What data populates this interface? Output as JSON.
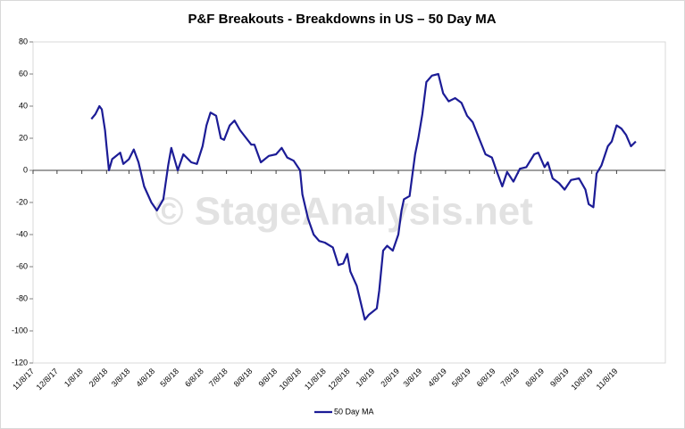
{
  "chart_data": {
    "type": "line",
    "title": "P&F Breakouts - Breakdowns in US – 50 Day MA",
    "watermark": "© StageAnalysis.net",
    "x": [
      "2018-01-20",
      "2018-01-25",
      "2018-01-30",
      "2018-02-02",
      "2018-02-06",
      "2018-02-08",
      "2018-02-11",
      "2018-02-15",
      "2018-02-25",
      "2018-03-01",
      "2018-03-08",
      "2018-03-14",
      "2018-03-20",
      "2018-03-27",
      "2018-04-05",
      "2018-04-12",
      "2018-04-20",
      "2018-04-26",
      "2018-04-30",
      "2018-05-08",
      "2018-05-15",
      "2018-05-25",
      "2018-06-01",
      "2018-06-08",
      "2018-06-13",
      "2018-06-18",
      "2018-06-25",
      "2018-07-01",
      "2018-07-05",
      "2018-07-12",
      "2018-07-18",
      "2018-07-25",
      "2018-08-08",
      "2018-08-12",
      "2018-08-20",
      "2018-08-30",
      "2018-09-08",
      "2018-09-15",
      "2018-09-22",
      "2018-09-30",
      "2018-10-08",
      "2018-10-11",
      "2018-10-18",
      "2018-10-25",
      "2018-11-01",
      "2018-11-08",
      "2018-11-18",
      "2018-11-25",
      "2018-12-01",
      "2018-12-06",
      "2018-12-10",
      "2018-12-18",
      "2018-12-28",
      "2019-01-02",
      "2019-01-12",
      "2019-01-15",
      "2019-01-20",
      "2019-01-25",
      "2019-02-01",
      "2019-02-08",
      "2019-02-12",
      "2019-02-15",
      "2019-02-22",
      "2019-03-01",
      "2019-03-05",
      "2019-03-10",
      "2019-03-15",
      "2019-03-22",
      "2019-03-30",
      "2019-04-05",
      "2019-04-12",
      "2019-04-20",
      "2019-04-28",
      "2019-05-05",
      "2019-05-12",
      "2019-05-20",
      "2019-05-28",
      "2019-06-05",
      "2019-06-10",
      "2019-06-18",
      "2019-06-24",
      "2019-07-02",
      "2019-07-10",
      "2019-07-18",
      "2019-07-28",
      "2019-08-02",
      "2019-08-10",
      "2019-08-14",
      "2019-08-20",
      "2019-08-28",
      "2019-09-04",
      "2019-09-12",
      "2019-09-22",
      "2019-09-30",
      "2019-10-04",
      "2019-10-10",
      "2019-10-14",
      "2019-10-20",
      "2019-10-28",
      "2019-11-02",
      "2019-11-08",
      "2019-11-14",
      "2019-11-20",
      "2019-11-26",
      "2019-12-02"
    ],
    "series": [
      {
        "name": "50 Day MA",
        "color": "#1c1c96",
        "values": [
          32,
          35,
          40,
          38,
          25,
          15,
          0,
          7,
          11,
          4,
          7,
          13,
          5,
          -10,
          -20,
          -25,
          -18,
          3,
          14,
          0,
          10,
          5,
          4,
          15,
          28,
          36,
          34,
          20,
          19,
          28,
          31,
          25,
          16,
          16,
          5,
          9,
          10,
          14,
          8,
          6,
          0,
          -15,
          -30,
          -40,
          -44,
          -45,
          -48,
          -59,
          -58,
          -52,
          -63,
          -72,
          -93,
          -90,
          -86,
          -75,
          -50,
          -47,
          -50,
          -40,
          -25,
          -18,
          -16,
          10,
          20,
          35,
          55,
          59,
          60,
          48,
          43,
          45,
          42,
          34,
          30,
          20,
          10,
          8,
          1,
          -10,
          -1,
          -7,
          1,
          2,
          10,
          11,
          2,
          5,
          -5,
          -8,
          -12,
          -6,
          -5,
          -12,
          -21,
          -23,
          -2,
          3,
          15,
          18,
          28,
          26,
          22,
          15,
          18
        ]
      }
    ],
    "xlim": [
      "2017-11-08",
      "2020-01-08"
    ],
    "xticks": [
      {
        "value": "2017-11-08",
        "label": "11/8/17"
      },
      {
        "value": "2017-12-08",
        "label": "12/8/17"
      },
      {
        "value": "2018-01-08",
        "label": "1/8/18"
      },
      {
        "value": "2018-02-08",
        "label": "2/8/18"
      },
      {
        "value": "2018-03-08",
        "label": "3/8/18"
      },
      {
        "value": "2018-04-08",
        "label": "4/8/18"
      },
      {
        "value": "2018-05-08",
        "label": "5/8/18"
      },
      {
        "value": "2018-06-08",
        "label": "6/8/18"
      },
      {
        "value": "2018-07-08",
        "label": "7/8/18"
      },
      {
        "value": "2018-08-08",
        "label": "8/8/18"
      },
      {
        "value": "2018-09-08",
        "label": "9/8/18"
      },
      {
        "value": "2018-10-08",
        "label": "10/8/18"
      },
      {
        "value": "2018-11-08",
        "label": "11/8/18"
      },
      {
        "value": "2018-12-08",
        "label": "12/8/18"
      },
      {
        "value": "2019-01-08",
        "label": "1/8/19"
      },
      {
        "value": "2019-02-08",
        "label": "2/8/19"
      },
      {
        "value": "2019-03-08",
        "label": "3/8/19"
      },
      {
        "value": "2019-04-08",
        "label": "4/8/19"
      },
      {
        "value": "2019-05-08",
        "label": "5/8/19"
      },
      {
        "value": "2019-06-08",
        "label": "6/8/19"
      },
      {
        "value": "2019-07-08",
        "label": "7/8/19"
      },
      {
        "value": "2019-08-08",
        "label": "8/8/19"
      },
      {
        "value": "2019-09-08",
        "label": "9/8/19"
      },
      {
        "value": "2019-10-08",
        "label": "10/8/19"
      },
      {
        "value": "2019-11-08",
        "label": "11/8/19"
      }
    ],
    "ylim": [
      -120,
      80
    ],
    "yticks": [
      -120,
      -100,
      -80,
      -60,
      -40,
      -20,
      0,
      20,
      40,
      60,
      80
    ]
  }
}
